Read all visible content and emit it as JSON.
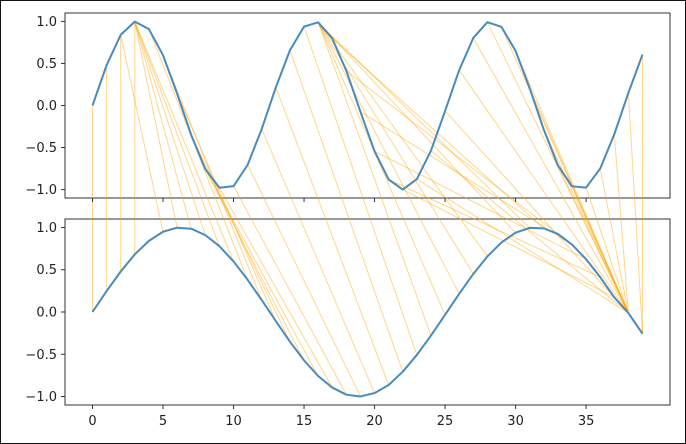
{
  "chart_data": {
    "type": "line",
    "description_free": true,
    "top_panel": {
      "series": [
        {
          "color": "#4a8bbd",
          "x": [
            0,
            1,
            2,
            3,
            4,
            5,
            6,
            7,
            8,
            9,
            10,
            11,
            12,
            13,
            14,
            15,
            16,
            17,
            18,
            19,
            20,
            21,
            22,
            23,
            24,
            25,
            26,
            27,
            28,
            29,
            30,
            31,
            32,
            33,
            34,
            35,
            36,
            37,
            38,
            39
          ],
          "y": [
            0.0,
            0.479,
            0.841,
            0.997,
            0.909,
            0.598,
            0.141,
            -0.351,
            -0.757,
            -0.978,
            -0.959,
            -0.706,
            -0.279,
            0.215,
            0.657,
            0.938,
            0.989,
            0.798,
            0.412,
            -0.075,
            -0.544,
            -0.88,
            -1.0,
            -0.875,
            -0.537,
            -0.066,
            0.42,
            0.803,
            0.991,
            0.935,
            0.65,
            0.206,
            -0.287,
            -0.712,
            -0.961,
            -0.976,
            -0.75,
            -0.342,
            0.151,
            0.606
          ]
        }
      ],
      "xlim": [
        -1.95,
        40.95
      ],
      "ylim": [
        -1.1,
        1.1
      ],
      "yticks": [
        1.0,
        0.5,
        0.0,
        -0.5,
        -1.0
      ],
      "ytick_labels": [
        "1.0",
        "0.5",
        "0.0",
        "−0.5",
        "−1.0"
      ]
    },
    "bottom_panel": {
      "series": [
        {
          "color": "#4a8bbd",
          "x": [
            0,
            1,
            2,
            3,
            4,
            5,
            6,
            7,
            8,
            9,
            10,
            11,
            12,
            13,
            14,
            15,
            16,
            17,
            18,
            19,
            20,
            21,
            22,
            23,
            24,
            25,
            26,
            27,
            28,
            29,
            30,
            31,
            32,
            33,
            34,
            35,
            36,
            37,
            38,
            39
          ],
          "y": [
            0.0,
            0.247,
            0.479,
            0.682,
            0.841,
            0.949,
            0.997,
            0.985,
            0.909,
            0.778,
            0.598,
            0.381,
            0.141,
            -0.108,
            -0.351,
            -0.572,
            -0.757,
            -0.894,
            -0.978,
            -0.999,
            -0.959,
            -0.863,
            -0.706,
            -0.508,
            -0.279,
            -0.033,
            0.215,
            0.45,
            0.657,
            0.823,
            0.938,
            0.995,
            0.989,
            0.923,
            0.798,
            0.624,
            0.412,
            0.174,
            -0.012,
            -0.257
          ]
        }
      ],
      "xlim": [
        -1.95,
        40.95
      ],
      "ylim": [
        -1.1,
        1.1
      ],
      "xticks": [
        0,
        5,
        10,
        15,
        20,
        25,
        30,
        35
      ],
      "xtick_labels": [
        "0",
        "5",
        "10",
        "15",
        "20",
        "25",
        "30",
        "35"
      ],
      "yticks": [
        1.0,
        0.5,
        0.0,
        -0.5,
        -1.0
      ],
      "ytick_labels": [
        "1.0",
        "0.5",
        "0.0",
        "−0.5",
        "−1.0"
      ]
    },
    "connections": {
      "color": "#ffa500",
      "note_free": true,
      "pairs": [
        [
          0,
          0
        ],
        [
          1,
          1
        ],
        [
          2,
          2
        ],
        [
          3,
          3
        ],
        [
          2,
          5
        ],
        [
          3,
          6
        ],
        [
          3,
          7
        ],
        [
          3,
          8
        ],
        [
          3,
          9
        ],
        [
          3,
          10
        ],
        [
          4,
          11
        ],
        [
          5,
          12
        ],
        [
          6,
          13
        ],
        [
          7,
          14
        ],
        [
          8,
          15
        ],
        [
          8,
          16
        ],
        [
          9,
          17
        ],
        [
          10,
          18
        ],
        [
          11,
          19
        ],
        [
          12,
          20
        ],
        [
          13,
          21
        ],
        [
          14,
          22
        ],
        [
          15,
          23
        ],
        [
          16,
          24
        ],
        [
          16,
          25
        ],
        [
          16,
          26
        ],
        [
          16,
          27
        ],
        [
          16,
          28
        ],
        [
          16,
          30
        ],
        [
          16,
          31
        ],
        [
          17,
          32
        ],
        [
          18,
          33
        ],
        [
          19,
          34
        ],
        [
          20,
          35
        ],
        [
          21,
          36
        ],
        [
          22,
          37
        ],
        [
          23,
          38
        ],
        [
          24,
          38
        ],
        [
          25,
          38
        ],
        [
          26,
          38
        ],
        [
          27,
          38
        ],
        [
          28,
          38
        ],
        [
          29,
          38
        ],
        [
          30,
          38
        ],
        [
          31,
          38
        ],
        [
          32,
          38
        ],
        [
          33,
          38
        ],
        [
          34,
          38
        ],
        [
          35,
          38
        ],
        [
          36,
          38
        ],
        [
          37,
          38
        ],
        [
          38,
          39
        ],
        [
          39,
          39
        ]
      ]
    }
  }
}
